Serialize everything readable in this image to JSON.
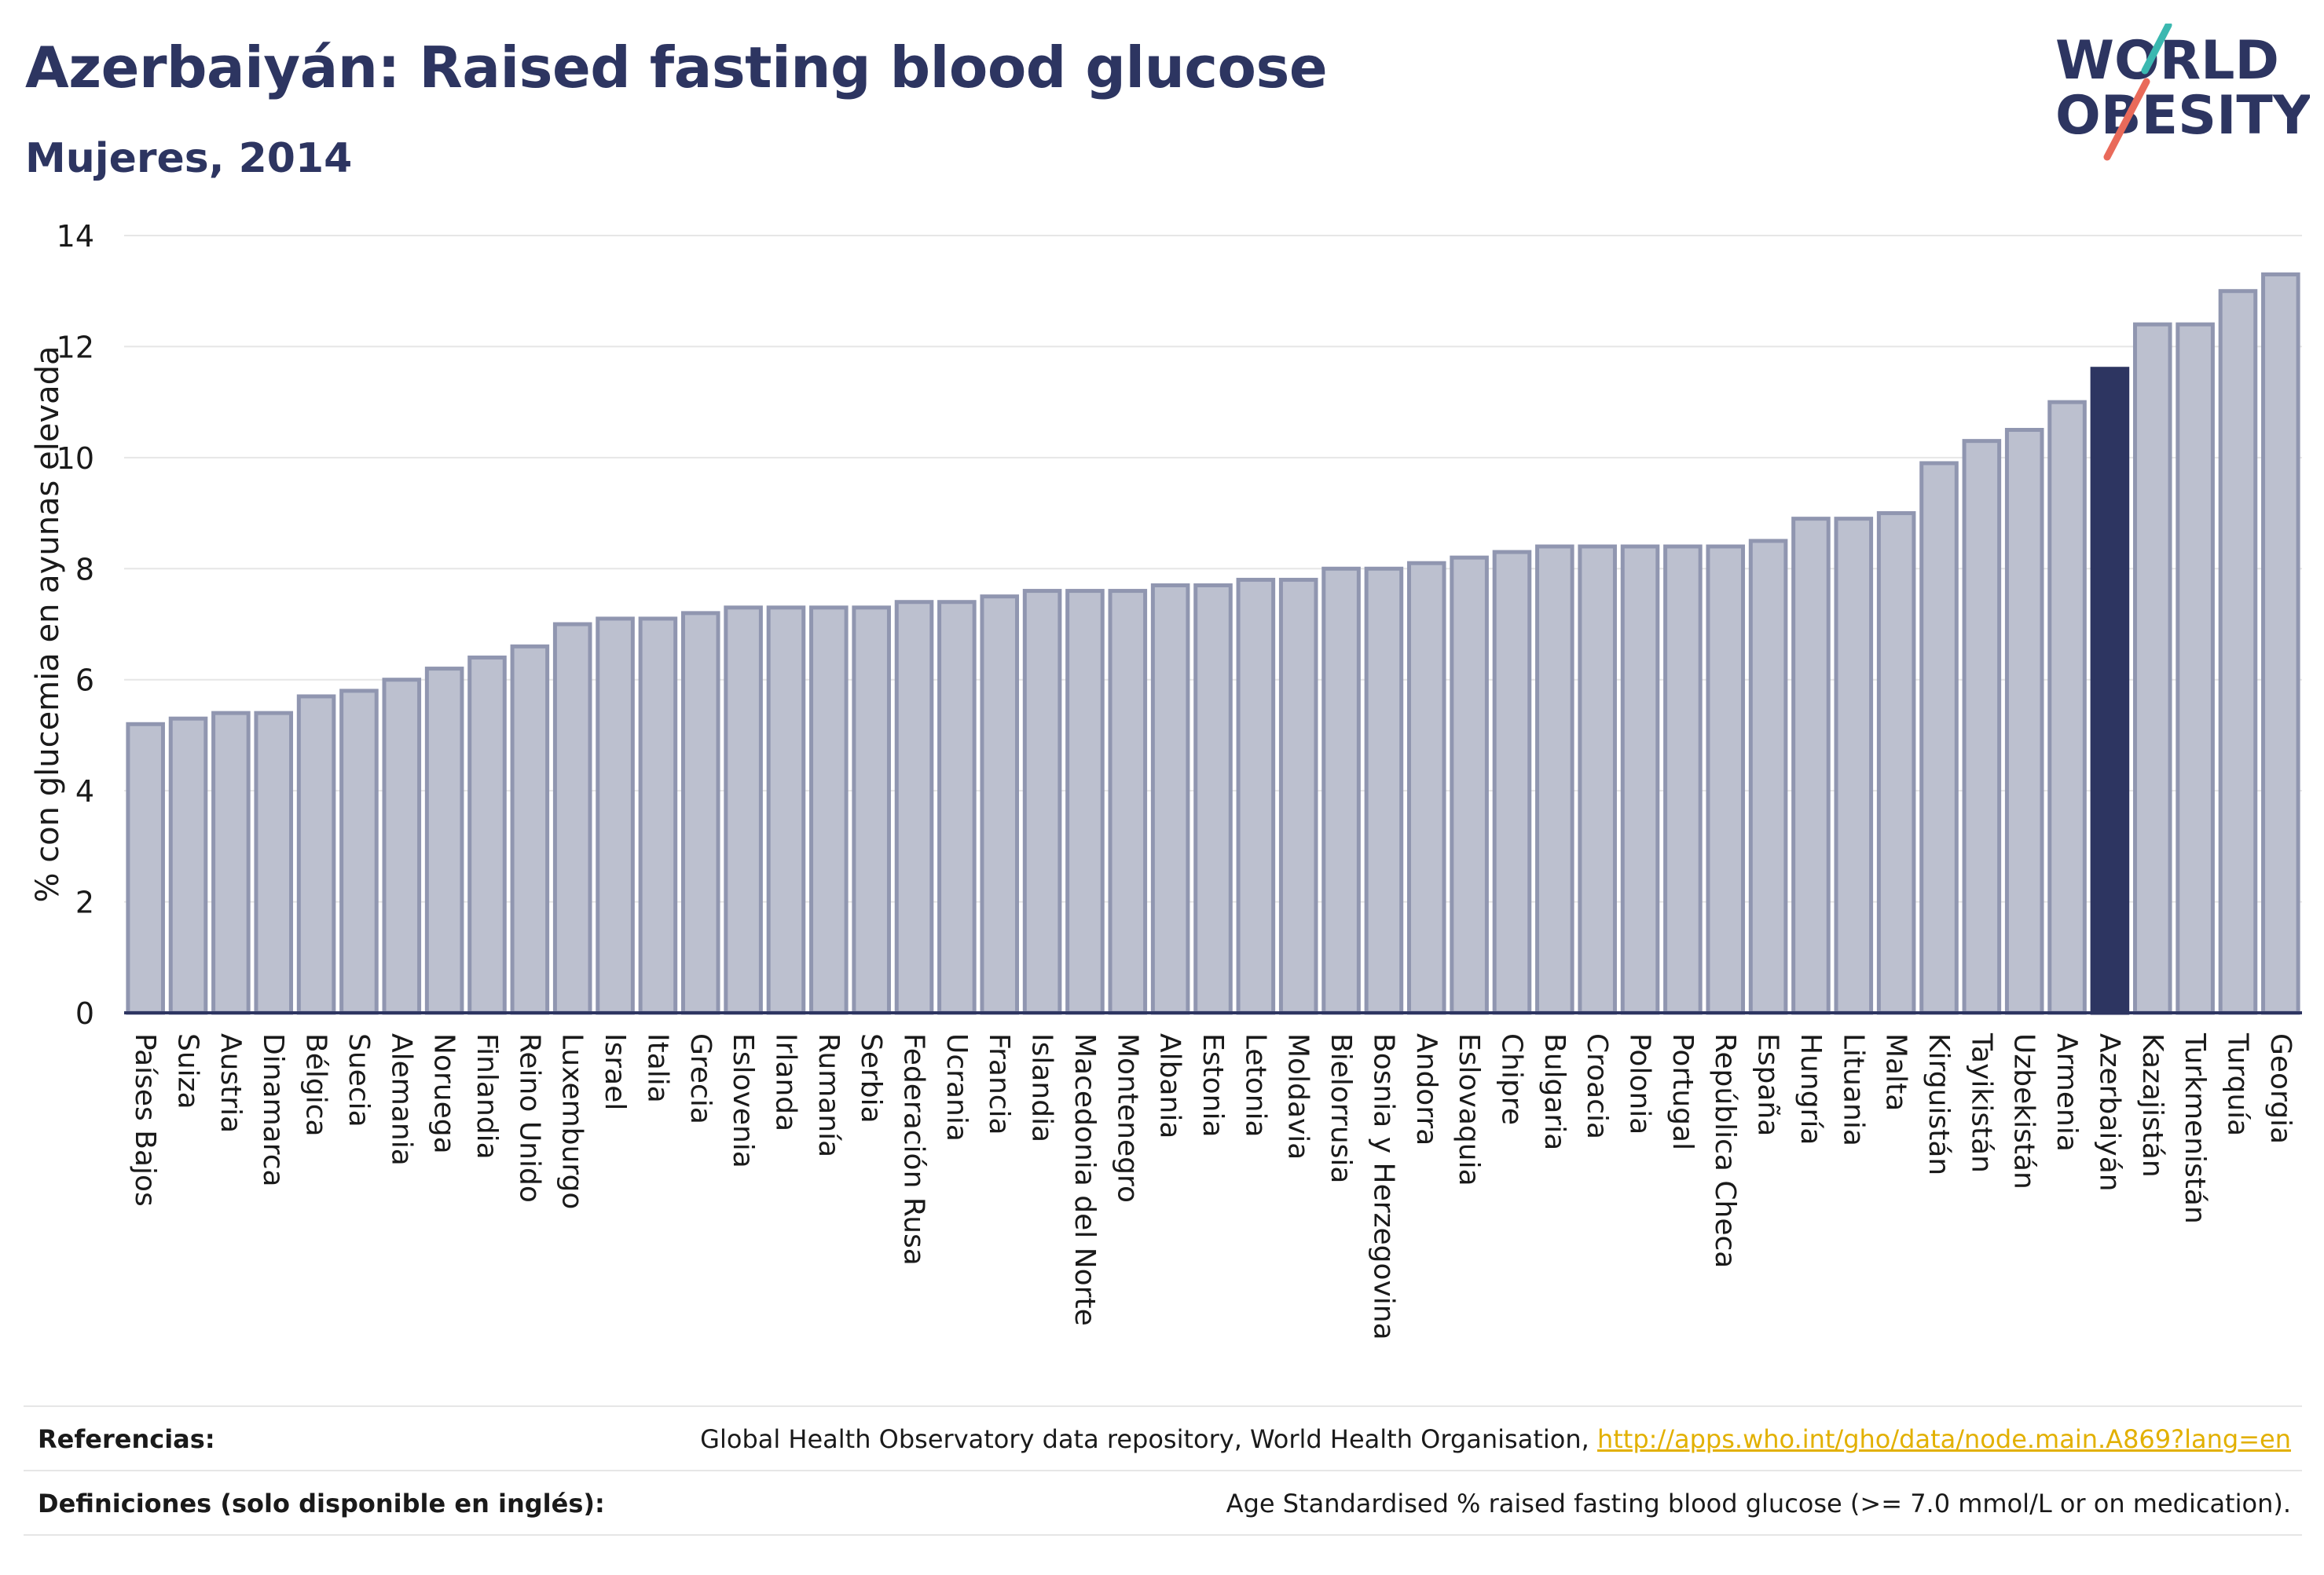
{
  "header": {
    "title": "Azerbaiyán: Raised fasting blood glucose",
    "subtitle": "Mujeres, 2014"
  },
  "logo": {
    "line1": "WORLD",
    "line2": "OBESITY",
    "icon": "world-obesity-logo"
  },
  "colors": {
    "bar": "#bcc0cf",
    "bar_border": "#9096b0",
    "highlight": "#2d3561",
    "text": "#2d3561",
    "link": "#e2b000"
  },
  "chart_data": {
    "type": "bar",
    "title": "Azerbaiyán: Raised fasting blood glucose",
    "subtitle": "Mujeres, 2014",
    "ylabel": "% con glucemia en ayunas elevada",
    "xlabel": "",
    "ylim": [
      0,
      14
    ],
    "yticks": [
      0,
      2,
      4,
      6,
      8,
      10,
      12,
      14
    ],
    "grid": true,
    "highlight": "Azerbaiyán",
    "categories": [
      "Países Bajos",
      "Suiza",
      "Austria",
      "Dinamarca",
      "Bélgica",
      "Suecia",
      "Alemania",
      "Noruega",
      "Finlandia",
      "Reino Unido",
      "Luxemburgo",
      "Israel",
      "Italia",
      "Grecia",
      "Eslovenia",
      "Irlanda",
      "Rumanía",
      "Serbia",
      "Federación Rusa",
      "Ucrania",
      "Francia",
      "Islandia",
      "Macedonia del Norte",
      "Montenegro",
      "Albania",
      "Estonia",
      "Letonia",
      "Moldavia",
      "Bielorrusia",
      "Bosnia y Herzegovina",
      "Andorra",
      "Eslovaquia",
      "Chipre",
      "Bulgaria",
      "Croacia",
      "Polonia",
      "Portugal",
      "República Checa",
      "España",
      "Hungría",
      "Lituania",
      "Malta",
      "Kirguistán",
      "Tayikistán",
      "Uzbekistán",
      "Armenia",
      "Azerbaiyán",
      "Kazajistán",
      "Turkmenistán",
      "Turquía",
      "Georgia"
    ],
    "values": [
      5.2,
      5.3,
      5.4,
      5.4,
      5.7,
      5.8,
      6.0,
      6.2,
      6.4,
      6.6,
      7.0,
      7.1,
      7.1,
      7.2,
      7.3,
      7.3,
      7.3,
      7.3,
      7.4,
      7.4,
      7.5,
      7.6,
      7.6,
      7.6,
      7.7,
      7.7,
      7.8,
      7.8,
      8.0,
      8.0,
      8.1,
      8.2,
      8.3,
      8.4,
      8.4,
      8.4,
      8.4,
      8.4,
      8.5,
      8.9,
      8.9,
      9.0,
      9.9,
      10.3,
      10.5,
      11.0,
      11.6,
      12.4,
      12.4,
      13.0,
      13.3
    ]
  },
  "footer": {
    "references_label": "Referencias:",
    "references_text": "Global Health Observatory data repository, World Health Organisation, ",
    "references_link": "http://apps.who.int/gho/data/node.main.A869?lang=en",
    "definitions_label": "Definiciones (solo disponible en inglés):",
    "definitions_text": "Age Standardised % raised fasting blood glucose (>= 7.0 mmol/L or on medication)."
  }
}
